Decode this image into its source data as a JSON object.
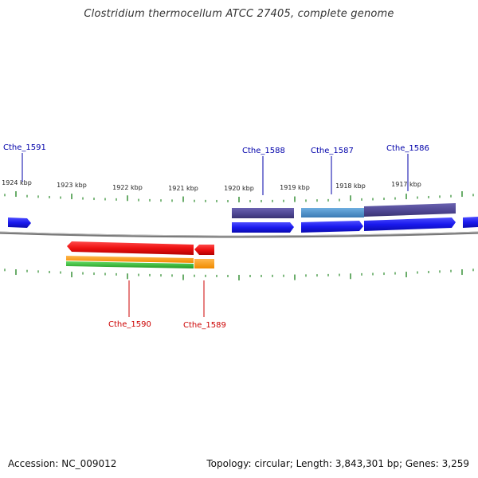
{
  "title": "Clostridium thermocellum ATCC 27405, complete genome",
  "footer": {
    "accession": "Accession: NC_009012",
    "info": "Topology: circular; Length: 3,843,301 bp; Genes: 3,259"
  },
  "colors": {
    "forward_label": "#0000aa",
    "reverse_label": "#cc0000",
    "backbone": "#888888",
    "ticks": "#2a8a2a",
    "forward_gene": "#1a1aee",
    "reverse_gene": "#ee1111",
    "cds_purple": "#4d4591",
    "cds_teal": "#4a8ec9",
    "orange": "#ff9900",
    "green": "#33bb33"
  },
  "kbp_labels": [
    "1924 kbp",
    "1923 kbp",
    "1922 kbp",
    "1921 kbp",
    "1920 kbp",
    "1919 kbp",
    "1918 kbp",
    "1917 kbp"
  ],
  "genes": [
    {
      "name": "Cthe_1591",
      "strand": "forward"
    },
    {
      "name": "Cthe_1588",
      "strand": "forward"
    },
    {
      "name": "Cthe_1587",
      "strand": "forward"
    },
    {
      "name": "Cthe_1586",
      "strand": "forward"
    },
    {
      "name": "Cthe_1590",
      "strand": "reverse"
    },
    {
      "name": "Cthe_1589",
      "strand": "reverse"
    }
  ]
}
